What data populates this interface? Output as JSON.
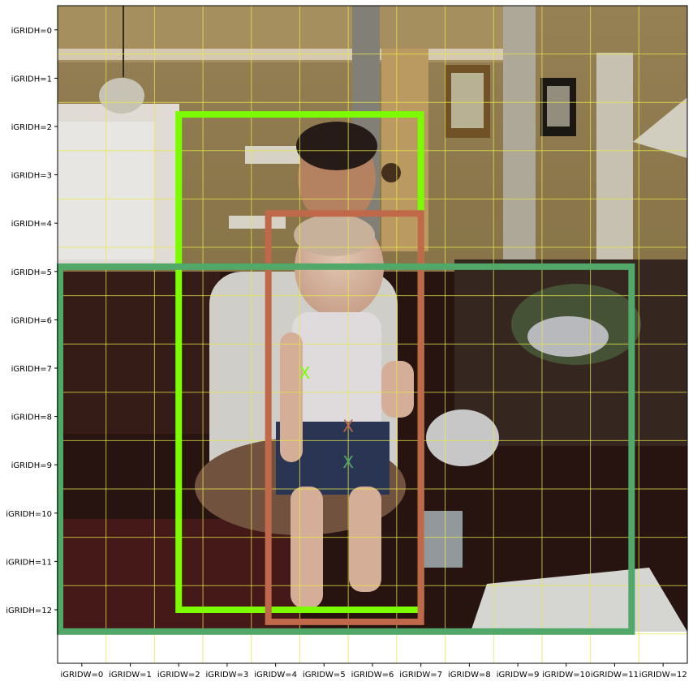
{
  "chart_data": {
    "type": "image-grid-overlay",
    "grid": {
      "cols": 13,
      "rows": 13,
      "x_tick_labels": [
        "iGRIDW=0",
        "iGRIDW=1",
        "iGRIDW=2",
        "iGRIDW=3",
        "iGRIDW=4",
        "iGRIDW=5",
        "iGRIDW=6",
        "iGRIDW=7",
        "iGRIDW=8",
        "iGRIDW=9",
        "iGRIDW=10",
        "iGRIDW=11",
        "iGRIDW=12"
      ],
      "y_tick_labels": [
        "iGRIDH=0",
        "iGRIDH=1",
        "iGRIDH=2",
        "iGRIDH=3",
        "iGRIDH=4",
        "iGRIDH=5",
        "iGRIDH=6",
        "iGRIDH=7",
        "iGRIDH=8",
        "iGRIDH=9",
        "iGRIDH=10",
        "iGRIDH=11",
        "iGRIDH=12"
      ],
      "grid_color": "#e8e84a"
    },
    "image_extent_rows": 12.98,
    "boxes": [
      {
        "x_min": 2.5,
        "y_min": 2.25,
        "x_max": 7.5,
        "y_max": 12.5,
        "center": [
          5.1,
          7.6
        ],
        "color": "#7cfc00"
      },
      {
        "x_min": 4.35,
        "y_min": 4.3,
        "x_max": 7.5,
        "y_max": 12.75,
        "center": [
          6.0,
          8.7
        ],
        "color": "#c0684a"
      },
      {
        "x_min": 0.05,
        "y_min": 5.4,
        "x_max": 11.85,
        "y_max": 12.95,
        "center": [
          6.0,
          9.45
        ],
        "color": "#52a868"
      }
    ],
    "center_marker": "X"
  }
}
